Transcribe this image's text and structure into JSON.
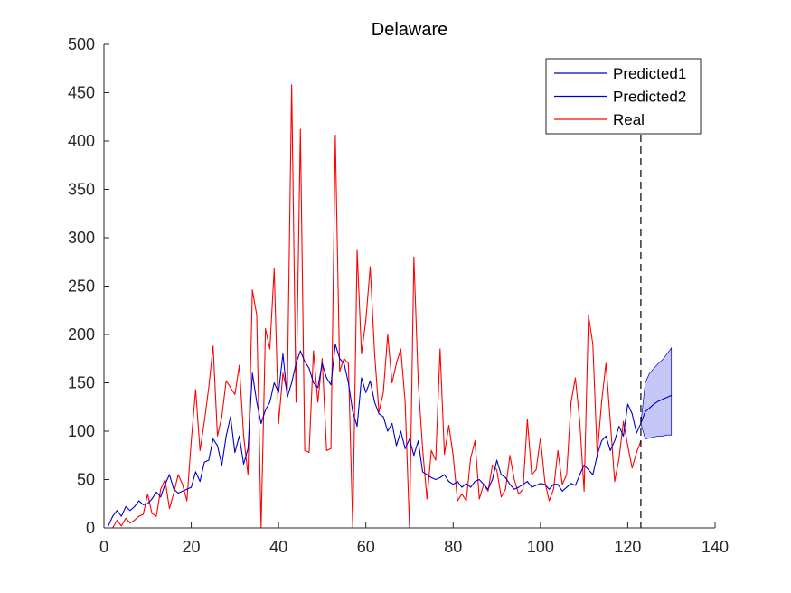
{
  "chart_data": {
    "type": "line",
    "title": "Delaware",
    "xlabel": "",
    "ylabel": "",
    "xlim": [
      0,
      140
    ],
    "ylim": [
      0,
      500
    ],
    "xticks": [
      0,
      20,
      40,
      60,
      80,
      100,
      120,
      140
    ],
    "yticks": [
      0,
      50,
      100,
      150,
      200,
      250,
      300,
      350,
      400,
      450,
      500
    ],
    "grid": false,
    "legend_position": "top-right",
    "vline": {
      "x": 123,
      "style": "dashed"
    },
    "series": [
      {
        "name": "Predicted1",
        "color": "#0000cc",
        "x": [
          1,
          2,
          3,
          4,
          5,
          6,
          7,
          8,
          9,
          10,
          11,
          12,
          13,
          14,
          15,
          16,
          17,
          18,
          19,
          20,
          21,
          22,
          23,
          24,
          25,
          26,
          27,
          28,
          29,
          30,
          31,
          32,
          33,
          34,
          35,
          36,
          37,
          38,
          39,
          40,
          41,
          42,
          43,
          44,
          45,
          46,
          47,
          48,
          49,
          50,
          51,
          52,
          53,
          54,
          55,
          56,
          57,
          58,
          59,
          60,
          61,
          62,
          63,
          64,
          65,
          66,
          67,
          68,
          69,
          70,
          71,
          72,
          73,
          74,
          75,
          76,
          77,
          78,
          79,
          80,
          81,
          82,
          83,
          84,
          85,
          86,
          87,
          88,
          89,
          90,
          91,
          92,
          93,
          94,
          95,
          96,
          97,
          98,
          99,
          100,
          101,
          102,
          103,
          104,
          105,
          106,
          107,
          108,
          109,
          110,
          111,
          112,
          113,
          114,
          115,
          116,
          117,
          118,
          119,
          120,
          121,
          122,
          123
        ],
        "y": [
          2,
          12,
          18,
          12,
          22,
          18,
          22,
          28,
          24,
          25,
          30,
          37,
          32,
          45,
          55,
          40,
          36,
          38,
          40,
          42,
          58,
          48,
          68,
          70,
          92,
          85,
          65,
          95,
          115,
          78,
          95,
          66,
          82,
          160,
          130,
          108,
          122,
          130,
          150,
          140,
          180,
          135,
          150,
          170,
          183,
          172,
          165,
          150,
          145,
          170,
          155,
          148,
          190,
          175,
          170,
          150,
          120,
          105,
          155,
          140,
          152,
          130,
          118,
          115,
          100,
          108,
          85,
          100,
          82,
          92,
          75,
          90,
          58,
          55,
          52,
          50,
          52,
          55,
          48,
          45,
          48,
          42,
          46,
          42,
          48,
          50,
          45,
          40,
          50,
          70,
          55,
          52,
          45,
          40,
          42,
          45,
          48,
          42,
          44,
          46,
          45,
          40,
          45,
          45,
          38,
          42,
          46,
          44,
          55,
          65,
          60,
          55,
          75,
          90,
          95,
          80,
          90,
          105,
          95,
          128,
          118,
          98,
          108
        ]
      },
      {
        "name": "Predicted2",
        "color": "#0000cc",
        "x": [
          123,
          124,
          125,
          126,
          127,
          128,
          129,
          130
        ],
        "y": [
          108,
          120,
          124,
          128,
          131,
          133,
          135,
          137
        ],
        "band_lower": [
          108,
          92,
          93,
          94,
          95,
          95,
          96,
          96
        ],
        "band_upper": [
          108,
          150,
          160,
          165,
          170,
          174,
          180,
          186
        ],
        "band_color": "#c6c6f7"
      },
      {
        "name": "Real",
        "color": "#ff0000",
        "x": [
          1,
          2,
          3,
          4,
          5,
          6,
          7,
          8,
          9,
          10,
          11,
          12,
          13,
          14,
          15,
          16,
          17,
          18,
          19,
          20,
          21,
          22,
          23,
          24,
          25,
          26,
          27,
          28,
          29,
          30,
          31,
          32,
          33,
          34,
          35,
          36,
          37,
          38,
          39,
          40,
          41,
          42,
          43,
          44,
          45,
          46,
          47,
          48,
          49,
          50,
          51,
          52,
          53,
          54,
          55,
          56,
          57,
          58,
          59,
          60,
          61,
          62,
          63,
          64,
          65,
          66,
          67,
          68,
          69,
          70,
          71,
          72,
          73,
          74,
          75,
          76,
          77,
          78,
          79,
          80,
          81,
          82,
          83,
          84,
          85,
          86,
          87,
          88,
          89,
          90,
          91,
          92,
          93,
          94,
          95,
          96,
          97,
          98,
          99,
          100,
          101,
          102,
          103,
          104,
          105,
          106,
          107,
          108,
          109,
          110,
          111,
          112,
          113,
          114,
          115,
          116,
          117,
          118,
          119,
          120,
          121,
          122,
          123
        ],
        "y": [
          0,
          0,
          8,
          2,
          10,
          5,
          8,
          12,
          14,
          35,
          15,
          12,
          40,
          50,
          20,
          36,
          55,
          45,
          28,
          90,
          143,
          80,
          110,
          145,
          188,
          95,
          115,
          152,
          145,
          138,
          168,
          95,
          55,
          246,
          220,
          0,
          206,
          185,
          268,
          108,
          160,
          140,
          458,
          130,
          412,
          80,
          78,
          183,
          130,
          175,
          80,
          82,
          406,
          162,
          175,
          170,
          0,
          287,
          180,
          215,
          270,
          180,
          120,
          140,
          200,
          150,
          170,
          185,
          130,
          0,
          280,
          150,
          82,
          30,
          80,
          70,
          185,
          76,
          106,
          75,
          28,
          35,
          28,
          72,
          90,
          30,
          45,
          38,
          65,
          60,
          32,
          40,
          75,
          50,
          35,
          40,
          112,
          55,
          60,
          93,
          48,
          28,
          40,
          80,
          45,
          55,
          130,
          155,
          110,
          38,
          220,
          190,
          75,
          130,
          170,
          110,
          48,
          72,
          110,
          85,
          62,
          78,
          90
        ]
      }
    ]
  },
  "legend": {
    "items": [
      {
        "label": "Predicted1",
        "color": "#0000cc"
      },
      {
        "label": "Predicted2",
        "color": "#0000cc"
      },
      {
        "label": "Real",
        "color": "#ff0000"
      }
    ]
  }
}
